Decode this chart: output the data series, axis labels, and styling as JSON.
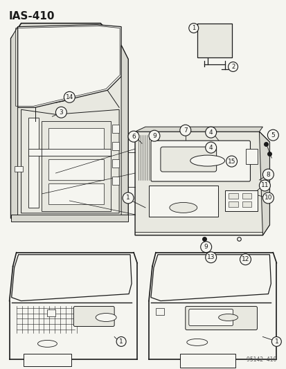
{
  "title": "IAS-410",
  "background_color": "#f5f5f0",
  "fig_width": 4.14,
  "fig_height": 5.33,
  "dpi": 100,
  "watermark": "95142  410",
  "line_color": "#1a1a1a",
  "gray_fill": "#d8d8d0",
  "light_gray": "#e8e8e0"
}
